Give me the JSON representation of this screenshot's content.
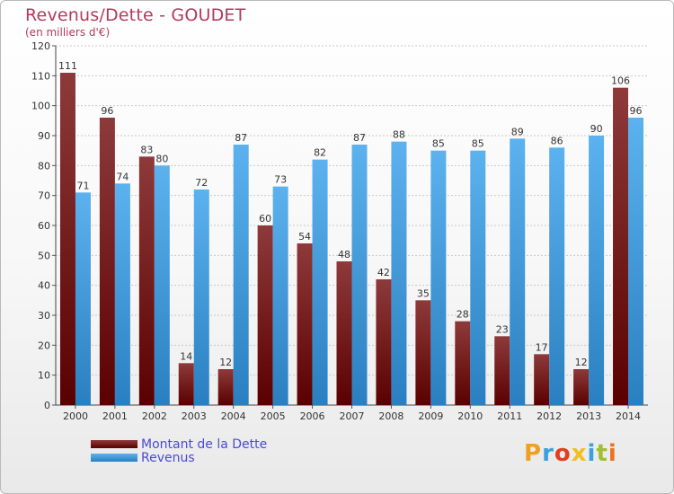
{
  "header": {
    "title": "Revenus/Dette - GOUDET",
    "subtitle": "(en milliers d'€)"
  },
  "legend": {
    "items": [
      {
        "label": "Montant de la Dette",
        "color": "#7a1c1c"
      },
      {
        "label": "Revenus",
        "color": "#3f9ddf"
      }
    ]
  },
  "logo": {
    "text": "Proxiti",
    "colors": [
      "#f0a020",
      "#3aa0e0",
      "#e04020",
      "#f0c020",
      "#3aa0e0",
      "#a0c030",
      "#f07020"
    ]
  },
  "chart_data": {
    "type": "bar",
    "title": "Revenus/Dette - GOUDET",
    "ylabel": "(en milliers d'€)",
    "xlabel": "",
    "ylim": [
      0,
      120
    ],
    "yticks": [
      0,
      10,
      20,
      30,
      40,
      50,
      60,
      70,
      80,
      90,
      100,
      110,
      120
    ],
    "grid": true,
    "legend_position": "bottom-left",
    "categories": [
      "2000",
      "2001",
      "2002",
      "2003",
      "2004",
      "2005",
      "2006",
      "2007",
      "2008",
      "2009",
      "2010",
      "2011",
      "2012",
      "2013",
      "2014"
    ],
    "series": [
      {
        "name": "Montant de la Dette",
        "color": "#7a1c1c",
        "values": [
          111,
          96,
          83,
          14,
          12,
          60,
          54,
          48,
          42,
          35,
          28,
          23,
          17,
          12,
          106
        ]
      },
      {
        "name": "Revenus",
        "color": "#3f9ddf",
        "values": [
          71,
          74,
          80,
          72,
          87,
          73,
          82,
          87,
          88,
          85,
          85,
          89,
          86,
          90,
          96
        ]
      }
    ]
  }
}
